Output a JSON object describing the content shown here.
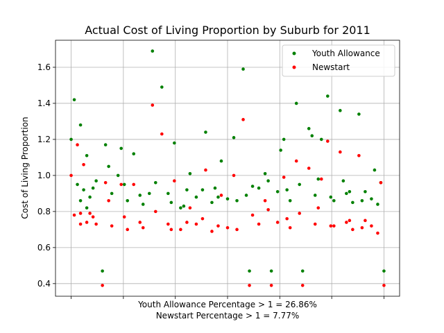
{
  "chart_data": {
    "type": "scatter",
    "title": "Actual Cost of Living Proportion by Suburb for 2011",
    "ylabel": "Cost of Living Proportion",
    "xlabel_lines": [
      "Youth Allowance Percentage > 1 = 26.86%",
      "Newstart Percentage > 1 = 7.77%"
    ],
    "ylim": [
      0.33,
      1.75
    ],
    "xlim": [
      -0.05,
      1.05
    ],
    "yticks": [
      0.4,
      0.6,
      0.8,
      1.0,
      1.2,
      1.4,
      1.6
    ],
    "ytick_labels": [
      "0.4",
      "0.6",
      "0.8",
      "1.0",
      "1.2",
      "1.4",
      "1.6"
    ],
    "x_gridlines": 0,
    "grid": true,
    "legend_position": "top-right",
    "series": [
      {
        "name": "Youth Allowance",
        "color": "#008000",
        "x": [
          0.0,
          0.01,
          0.02,
          0.03,
          0.04,
          0.05,
          0.06,
          0.08,
          0.1,
          0.11,
          0.13,
          0.16,
          0.18,
          0.2,
          0.23,
          0.26,
          0.29,
          0.31,
          0.33,
          0.35,
          0.37,
          0.4,
          0.43,
          0.45,
          0.48,
          0.5,
          0.52,
          0.55,
          0.57,
          0.6,
          0.62,
          0.64,
          0.66,
          0.68,
          0.7,
          0.72,
          0.74,
          0.76,
          0.78,
          0.8,
          0.82,
          0.84,
          0.86,
          0.88,
          0.9,
          0.92,
          0.94,
          0.96,
          0.98,
          1.0,
          0.03,
          0.07,
          0.12,
          0.17,
          0.22,
          0.27,
          0.32,
          0.38,
          0.42,
          0.47,
          0.53,
          0.58,
          0.63,
          0.69,
          0.73,
          0.79,
          0.83,
          0.89,
          0.93,
          0.99,
          0.05,
          0.15,
          0.25,
          0.36,
          0.46,
          0.56,
          0.67,
          0.77,
          0.87,
          0.97
        ],
        "y": [
          1.2,
          1.42,
          0.95,
          1.28,
          0.92,
          1.11,
          0.88,
          0.97,
          0.47,
          1.17,
          0.9,
          1.15,
          0.86,
          1.12,
          0.84,
          1.69,
          1.49,
          0.9,
          1.18,
          0.82,
          0.92,
          0.88,
          1.24,
          0.85,
          1.08,
          0.87,
          1.21,
          1.59,
          0.47,
          0.93,
          1.01,
          0.47,
          0.91,
          1.2,
          0.86,
          1.4,
          0.47,
          1.26,
          0.89,
          1.2,
          1.44,
          0.86,
          1.36,
          0.9,
          0.85,
          1.34,
          0.91,
          0.87,
          0.84,
          0.47,
          0.86,
          0.93,
          1.05,
          0.95,
          0.89,
          0.96,
          0.85,
          1.01,
          0.92,
          0.88,
          0.86,
          0.94,
          0.97,
          0.92,
          0.95,
          0.98,
          0.88,
          0.91,
          0.86,
          0.96,
          0.82,
          1.0,
          0.9,
          0.83,
          0.93,
          0.89,
          1.14,
          1.22,
          0.97,
          1.03
        ]
      },
      {
        "name": "Newstart",
        "color": "#ff0000",
        "x": [
          0.0,
          0.01,
          0.02,
          0.03,
          0.04,
          0.05,
          0.06,
          0.08,
          0.1,
          0.11,
          0.13,
          0.16,
          0.18,
          0.2,
          0.23,
          0.26,
          0.29,
          0.31,
          0.33,
          0.35,
          0.37,
          0.4,
          0.43,
          0.45,
          0.48,
          0.5,
          0.52,
          0.55,
          0.57,
          0.6,
          0.62,
          0.64,
          0.66,
          0.68,
          0.7,
          0.72,
          0.74,
          0.76,
          0.78,
          0.8,
          0.82,
          0.84,
          0.86,
          0.88,
          0.9,
          0.92,
          0.94,
          0.96,
          0.98,
          1.0,
          0.03,
          0.07,
          0.12,
          0.17,
          0.22,
          0.27,
          0.32,
          0.38,
          0.42,
          0.47,
          0.53,
          0.58,
          0.63,
          0.69,
          0.73,
          0.79,
          0.83,
          0.89,
          0.93,
          0.99
        ],
        "y": [
          1.0,
          0.78,
          1.17,
          0.79,
          1.06,
          0.74,
          0.79,
          0.73,
          0.39,
          0.96,
          0.72,
          0.95,
          0.7,
          0.95,
          0.71,
          1.39,
          1.23,
          0.73,
          0.97,
          0.7,
          0.74,
          0.73,
          1.03,
          0.69,
          0.89,
          0.71,
          1.0,
          1.31,
          0.39,
          0.73,
          0.86,
          0.39,
          0.74,
          0.99,
          0.71,
          1.08,
          0.39,
          1.04,
          0.73,
          0.98,
          1.19,
          0.72,
          1.13,
          0.74,
          0.7,
          1.11,
          0.75,
          0.72,
          0.68,
          0.39,
          0.73,
          0.77,
          0.86,
          0.77,
          0.74,
          0.8,
          0.7,
          0.82,
          0.76,
          0.72,
          0.7,
          0.78,
          0.81,
          0.76,
          0.79,
          0.82,
          0.72,
          0.75,
          0.71,
          0.96
        ]
      }
    ]
  }
}
